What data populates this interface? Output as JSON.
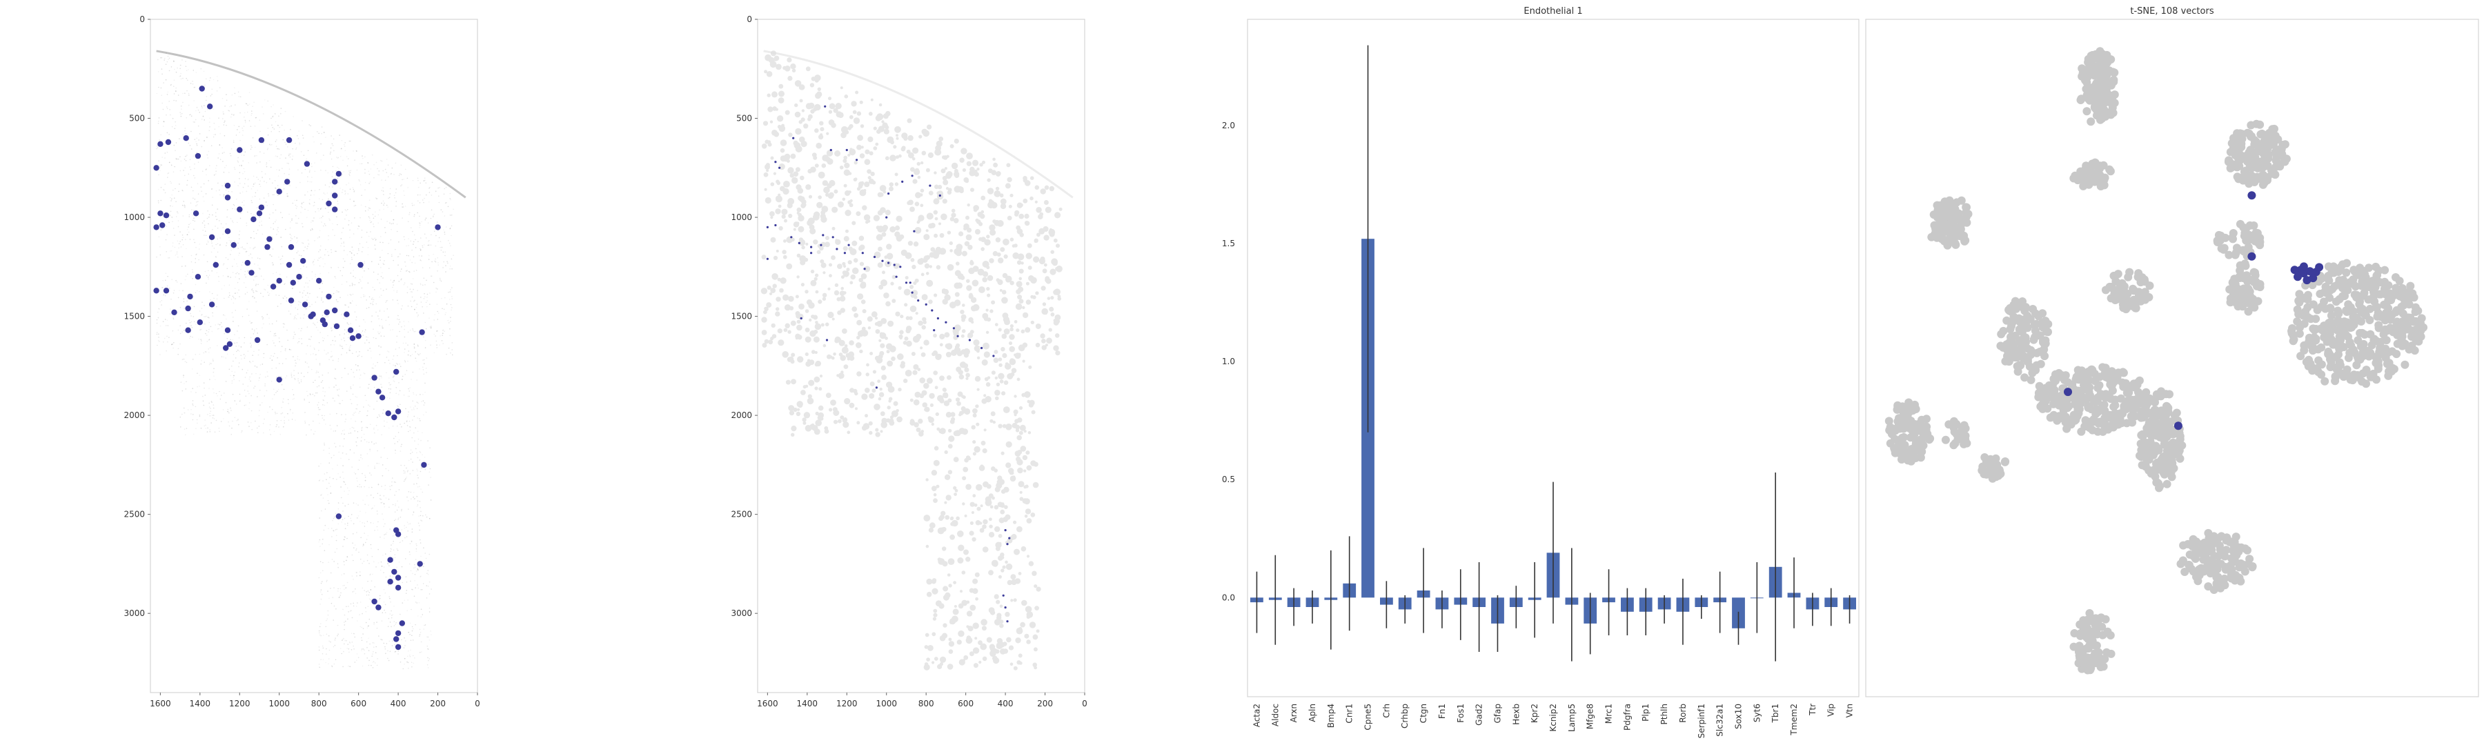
{
  "colors": {
    "accent": "#3b3b9a",
    "bar": "#4a6aaf",
    "gray": "#c8c8c8",
    "axis": "#cccccc"
  },
  "chart_data": [
    {
      "type": "scatter",
      "title": "",
      "xlim": [
        1650,
        0
      ],
      "ylim": [
        3400,
        0
      ],
      "xticks": [
        1600,
        1400,
        1200,
        1000,
        800,
        600,
        400,
        200,
        0
      ],
      "yticks": [
        0,
        500,
        1000,
        1500,
        2000,
        2500,
        3000
      ],
      "tick_labels_x": [
        "1600",
        "1400",
        "1200",
        "1000",
        "800",
        "600",
        "400",
        "200",
        "0"
      ],
      "tick_labels_y": [
        "0",
        "500",
        "1000",
        "1500",
        "2000",
        "2500",
        "3000"
      ],
      "series": [
        {
          "points": [
            [
              1390,
              350
            ],
            [
              1470,
              600
            ],
            [
              1350,
              440
            ],
            [
              1560,
              620
            ],
            [
              1600,
              630
            ],
            [
              1620,
              750
            ],
            [
              1410,
              690
            ],
            [
              1200,
              660
            ],
            [
              1090,
              610
            ],
            [
              950,
              610
            ],
            [
              860,
              730
            ],
            [
              700,
              780
            ],
            [
              1260,
              840
            ],
            [
              1420,
              980
            ],
            [
              1600,
              980
            ],
            [
              1570,
              990
            ],
            [
              1590,
              1040
            ],
            [
              1620,
              1050
            ],
            [
              1100,
              980
            ],
            [
              1090,
              950
            ],
            [
              1000,
              870
            ],
            [
              960,
              820
            ],
            [
              720,
              820
            ],
            [
              720,
              890
            ],
            [
              750,
              930
            ],
            [
              720,
              960
            ],
            [
              1260,
              900
            ],
            [
              1200,
              960
            ],
            [
              1130,
              1010
            ],
            [
              1260,
              1070
            ],
            [
              1340,
              1100
            ],
            [
              1230,
              1140
            ],
            [
              1050,
              1110
            ],
            [
              1060,
              1150
            ],
            [
              940,
              1150
            ],
            [
              880,
              1220
            ],
            [
              950,
              1240
            ],
            [
              1000,
              1320
            ],
            [
              1160,
              1230
            ],
            [
              1140,
              1280
            ],
            [
              1320,
              1240
            ],
            [
              1410,
              1300
            ],
            [
              900,
              1300
            ],
            [
              1450,
              1400
            ],
            [
              930,
              1330
            ],
            [
              800,
              1320
            ],
            [
              1030,
              1350
            ],
            [
              940,
              1420
            ],
            [
              750,
              1400
            ],
            [
              590,
              1240
            ],
            [
              1620,
              1370
            ],
            [
              1570,
              1370
            ],
            [
              1530,
              1480
            ],
            [
              1340,
              1440
            ],
            [
              1460,
              1460
            ],
            [
              1400,
              1530
            ],
            [
              1460,
              1570
            ],
            [
              870,
              1440
            ],
            [
              830,
              1490
            ],
            [
              840,
              1500
            ],
            [
              760,
              1480
            ],
            [
              720,
              1470
            ],
            [
              660,
              1490
            ],
            [
              780,
              1520
            ],
            [
              770,
              1540
            ],
            [
              710,
              1550
            ],
            [
              640,
              1570
            ],
            [
              600,
              1600
            ],
            [
              630,
              1610
            ],
            [
              1110,
              1620
            ],
            [
              1260,
              1570
            ],
            [
              1250,
              1640
            ],
            [
              1270,
              1660
            ],
            [
              280,
              1580
            ],
            [
              1000,
              1820
            ],
            [
              520,
              1810
            ],
            [
              500,
              1880
            ],
            [
              410,
              1780
            ],
            [
              480,
              1910
            ],
            [
              450,
              1990
            ],
            [
              400,
              1980
            ],
            [
              420,
              2010
            ],
            [
              200,
              1050
            ],
            [
              270,
              2250
            ],
            [
              700,
              2510
            ],
            [
              410,
              2580
            ],
            [
              400,
              2600
            ],
            [
              290,
              2750
            ],
            [
              440,
              2730
            ],
            [
              420,
              2790
            ],
            [
              400,
              2820
            ],
            [
              440,
              2840
            ],
            [
              400,
              2870
            ],
            [
              520,
              2940
            ],
            [
              500,
              2970
            ],
            [
              380,
              3050
            ],
            [
              400,
              3100
            ],
            [
              410,
              3130
            ],
            [
              400,
              3170
            ]
          ]
        }
      ]
    },
    {
      "type": "scatter",
      "title": "",
      "xlim": [
        1650,
        0
      ],
      "ylim": [
        3400,
        0
      ],
      "xticks": [
        1600,
        1400,
        1200,
        1000,
        800,
        600,
        400,
        200,
        0
      ],
      "yticks": [
        0,
        500,
        1000,
        1500,
        2000,
        2500,
        3000
      ],
      "tick_labels_x": [
        "1600",
        "1400",
        "1200",
        "1000",
        "800",
        "600",
        "400",
        "200",
        "0"
      ],
      "tick_labels_y": [
        "0",
        "500",
        "1000",
        "1500",
        "2000",
        "2500",
        "3000"
      ],
      "series": [
        {
          "points": [
            [
              1470,
              600
            ],
            [
              1310,
              440
            ],
            [
              1560,
              720
            ],
            [
              1540,
              750
            ],
            [
              1560,
              1040
            ],
            [
              1600,
              1050
            ],
            [
              1480,
              1100
            ],
            [
              1440,
              1130
            ],
            [
              1380,
              1150
            ],
            [
              1330,
              1140
            ],
            [
              1250,
              1160
            ],
            [
              1190,
              1140
            ],
            [
              1120,
              1180
            ],
            [
              1060,
              1200
            ],
            [
              1020,
              1220
            ],
            [
              990,
              1230
            ],
            [
              960,
              1240
            ],
            [
              930,
              1250
            ],
            [
              1110,
              1260
            ],
            [
              950,
              1300
            ],
            [
              900,
              1330
            ],
            [
              870,
              1380
            ],
            [
              840,
              1420
            ],
            [
              800,
              1440
            ],
            [
              770,
              1470
            ],
            [
              740,
              1510
            ],
            [
              700,
              1530
            ],
            [
              660,
              1560
            ],
            [
              640,
              1600
            ],
            [
              580,
              1620
            ],
            [
              520,
              1660
            ],
            [
              460,
              1700
            ],
            [
              1210,
              1180
            ],
            [
              1270,
              1100
            ],
            [
              1320,
              1090
            ],
            [
              1380,
              1180
            ],
            [
              1600,
              1210
            ],
            [
              1000,
              1000
            ],
            [
              990,
              880
            ],
            [
              920,
              820
            ],
            [
              870,
              790
            ],
            [
              780,
              840
            ],
            [
              730,
              890
            ],
            [
              1280,
              660
            ],
            [
              1200,
              660
            ],
            [
              1150,
              710
            ],
            [
              860,
              1070
            ],
            [
              880,
              1330
            ],
            [
              760,
              1570
            ],
            [
              1430,
              1510
            ],
            [
              1300,
              1620
            ],
            [
              1050,
              1860
            ],
            [
              400,
              2580
            ],
            [
              380,
              2620
            ],
            [
              390,
              2650
            ],
            [
              410,
              2910
            ],
            [
              400,
              2970
            ],
            [
              390,
              3040
            ]
          ]
        }
      ]
    },
    {
      "type": "bar",
      "title": "Endothelial 1",
      "categories": [
        "Acta2",
        "Aldoc",
        "Arxn",
        "Apln",
        "Bmp4",
        "Cnr1",
        "Cpne5",
        "Crh",
        "Crhbp",
        "Ctgn",
        "Fn1",
        "Fos1",
        "Gad2",
        "Gfap",
        "Hexb",
        "Kpr2",
        "Kcnip2",
        "Lamp5",
        "Mfge8",
        "Mrc1",
        "Pdgfra",
        "Plp1",
        "Pthlh",
        "Rorb",
        "Serpinf1",
        "Slc32a1",
        "Sox10",
        "Syt6",
        "Tbr1",
        "Tmem2",
        "Ttr",
        "Vip",
        "Vtn"
      ],
      "values": [
        -0.02,
        -0.01,
        -0.04,
        -0.04,
        -0.01,
        0.06,
        1.52,
        -0.03,
        -0.05,
        0.03,
        -0.05,
        -0.03,
        -0.04,
        -0.11,
        -0.04,
        -0.01,
        0.19,
        -0.03,
        -0.11,
        -0.02,
        -0.06,
        -0.06,
        -0.05,
        -0.06,
        -0.04,
        -0.02,
        -0.13,
        0.0,
        0.13,
        0.02,
        -0.05,
        -0.04,
        -0.05
      ],
      "errors": [
        0.13,
        0.19,
        0.08,
        0.07,
        0.21,
        0.2,
        0.82,
        0.1,
        0.06,
        0.18,
        0.08,
        0.15,
        0.19,
        0.12,
        0.09,
        0.16,
        0.3,
        0.24,
        0.13,
        0.14,
        0.1,
        0.1,
        0.06,
        0.14,
        0.05,
        0.13,
        0.07,
        0.15,
        0.4,
        0.15,
        0.07,
        0.08,
        0.06
      ],
      "ylim": [
        -0.42,
        2.45
      ],
      "yticks": [
        0.0,
        0.5,
        1.0,
        1.5,
        2.0
      ],
      "tick_labels_y": [
        "0.0",
        "0.5",
        "1.0",
        "1.5",
        "2.0"
      ],
      "xlabel": "",
      "ylabel": ""
    },
    {
      "type": "scatter",
      "title": "t-SNE, 108 vectors",
      "clusters": [
        {
          "cx": 0.38,
          "cy": 0.1,
          "rx": 0.03,
          "ry": 0.055,
          "n": 120
        },
        {
          "cx": 0.64,
          "cy": 0.2,
          "rx": 0.05,
          "ry": 0.045,
          "n": 140
        },
        {
          "cx": 0.14,
          "cy": 0.3,
          "rx": 0.035,
          "ry": 0.035,
          "n": 90
        },
        {
          "cx": 0.37,
          "cy": 0.23,
          "rx": 0.03,
          "ry": 0.02,
          "n": 50
        },
        {
          "cx": 0.61,
          "cy": 0.33,
          "rx": 0.035,
          "ry": 0.03,
          "n": 50
        },
        {
          "cx": 0.62,
          "cy": 0.4,
          "rx": 0.025,
          "ry": 0.035,
          "n": 60
        },
        {
          "cx": 0.43,
          "cy": 0.4,
          "rx": 0.035,
          "ry": 0.03,
          "n": 60
        },
        {
          "cx": 0.8,
          "cy": 0.45,
          "rx": 0.11,
          "ry": 0.09,
          "n": 420
        },
        {
          "cx": 0.26,
          "cy": 0.47,
          "rx": 0.04,
          "ry": 0.06,
          "n": 120
        },
        {
          "cx": 0.37,
          "cy": 0.56,
          "rx": 0.09,
          "ry": 0.05,
          "n": 260
        },
        {
          "cx": 0.48,
          "cy": 0.62,
          "rx": 0.035,
          "ry": 0.07,
          "n": 180
        },
        {
          "cx": 0.07,
          "cy": 0.61,
          "rx": 0.035,
          "ry": 0.045,
          "n": 100
        },
        {
          "cx": 0.15,
          "cy": 0.61,
          "rx": 0.018,
          "ry": 0.02,
          "n": 25
        },
        {
          "cx": 0.21,
          "cy": 0.66,
          "rx": 0.025,
          "ry": 0.02,
          "n": 30
        },
        {
          "cx": 0.57,
          "cy": 0.8,
          "rx": 0.065,
          "ry": 0.04,
          "n": 120
        },
        {
          "cx": 0.37,
          "cy": 0.92,
          "rx": 0.03,
          "ry": 0.045,
          "n": 90
        }
      ],
      "highlight": [
        [
          0.71,
          0.37
        ],
        [
          0.715,
          0.375
        ],
        [
          0.725,
          0.372
        ],
        [
          0.735,
          0.373
        ],
        [
          0.72,
          0.385
        ],
        [
          0.705,
          0.38
        ],
        [
          0.73,
          0.382
        ],
        [
          0.715,
          0.365
        ],
        [
          0.74,
          0.366
        ],
        [
          0.7,
          0.37
        ],
        [
          0.63,
          0.26
        ],
        [
          0.63,
          0.35
        ],
        [
          0.33,
          0.55
        ],
        [
          0.51,
          0.6
        ]
      ]
    }
  ]
}
